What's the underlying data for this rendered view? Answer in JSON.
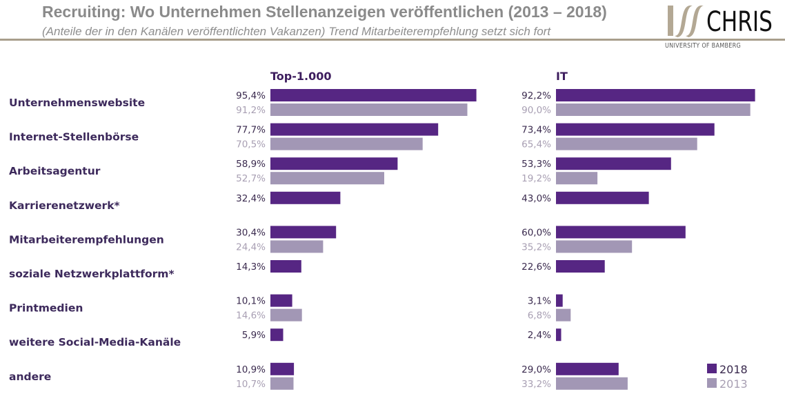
{
  "header": {
    "title": "Recruiting: Wo Unternehmen Stellenanzeigen veröffentlichen (2013 – 2018)",
    "subtitle": "(Anteile der in den Kanälen veröffentlichten Vakanzen) Trend Mitarbeiterempfehlung setzt sich fort",
    "logo_text": "CHRIS",
    "logo_subtext": "UNIVERSITY OF BAMBERG",
    "accent_color": "#a89e8c"
  },
  "colors": {
    "2018": "#562683",
    "2013": "#a297b5"
  },
  "chart_data": {
    "type": "bar",
    "orientation": "horizontal",
    "title": "Recruiting: Wo Unternehmen Stellenanzeigen veröffentlichen (2013 – 2018)",
    "unit": "%",
    "xlim": [
      0,
      100
    ],
    "grid": false,
    "legend": {
      "placement": "bottom-right",
      "entries": [
        "2018",
        "2013"
      ]
    },
    "categories": [
      "Unternehmenswebsite",
      "Internet-Stellenbörse",
      "Arbeitsagentur",
      "Karrierenetzwerk*",
      "Mitarbeiterempfehlungen",
      "soziale Netzwerkplattform*",
      "Printmedien",
      "weitere Social-Media-Kanäle",
      "andere"
    ],
    "panels": [
      {
        "title": "Top-1.000",
        "series": [
          {
            "name": "2018",
            "values": [
              95.4,
              77.7,
              58.9,
              32.4,
              30.4,
              14.3,
              10.1,
              5.9,
              10.9
            ],
            "labels": [
              "95,4%",
              "77,7%",
              "58,9%",
              "32,4%",
              "30,4%",
              "14,3%",
              "10,1%",
              "5,9%",
              "10,9%"
            ]
          },
          {
            "name": "2013",
            "values": [
              91.2,
              70.5,
              52.7,
              null,
              24.4,
              null,
              14.6,
              null,
              10.7
            ],
            "labels": [
              "91,2%",
              "70,5%",
              "52,7%",
              null,
              "24,4%",
              null,
              "14,6%",
              null,
              "10,7%"
            ]
          }
        ]
      },
      {
        "title": "IT",
        "series": [
          {
            "name": "2018",
            "values": [
              92.2,
              73.4,
              53.3,
              43.0,
              60.0,
              22.6,
              3.1,
              2.4,
              29.0
            ],
            "labels": [
              "92,2%",
              "73,4%",
              "53,3%",
              "43,0%",
              "60,0%",
              "22,6%",
              "3,1%",
              "2,4%",
              "29,0%"
            ]
          },
          {
            "name": "2013",
            "values": [
              90.0,
              65.4,
              19.2,
              null,
              35.2,
              null,
              6.8,
              null,
              33.2
            ],
            "labels": [
              "90,0%",
              "65,4%",
              "19,2%",
              null,
              "35,2%",
              null,
              "6,8%",
              null,
              "33,2%"
            ]
          }
        ]
      }
    ]
  }
}
